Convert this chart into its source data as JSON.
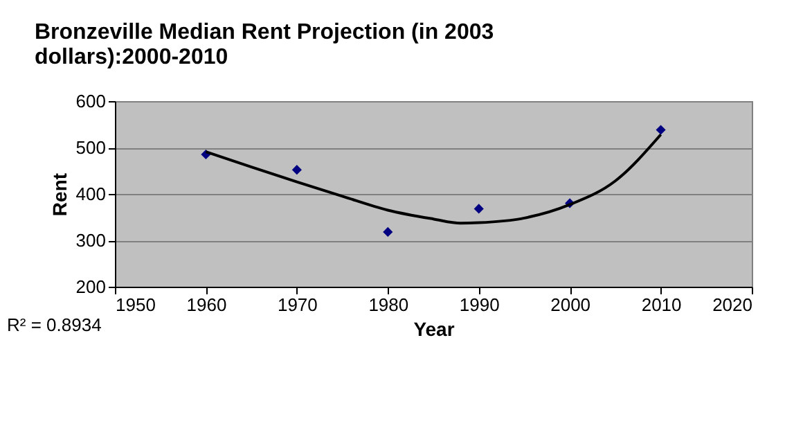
{
  "chart_data": {
    "type": "scatter",
    "title": [
      "Bronzeville Median Rent Projection (in 2003",
      "dollars):2000-2010"
    ],
    "xlabel": "Year",
    "ylabel": "Rent",
    "xlim": [
      1950,
      2020
    ],
    "xticks": [
      1950,
      1960,
      1970,
      1980,
      1990,
      2000,
      2010,
      2020
    ],
    "ylim": [
      200,
      600
    ],
    "yticks": [
      200,
      300,
      400,
      500,
      600
    ],
    "grid": "y",
    "marker": "diamond",
    "series": [
      {
        "color": "#000080",
        "x": [
          1960,
          1970,
          1980,
          1990,
          2000,
          2010
        ],
        "values": [
          485,
          452,
          318,
          368,
          380,
          538
        ]
      },
      {
        "type": "line",
        "marker": "none",
        "color": "#000000",
        "x": [
          1960,
          1965,
          1970,
          1975,
          1980,
          1985,
          1988,
          1990,
          1995,
          2000,
          2005,
          2010
        ],
        "values": [
          491,
          458,
          426,
          395,
          365,
          346,
          337,
          338,
          348,
          377,
          428,
          528
        ]
      }
    ],
    "annotations": [
      "R² = 0.8934"
    ]
  }
}
